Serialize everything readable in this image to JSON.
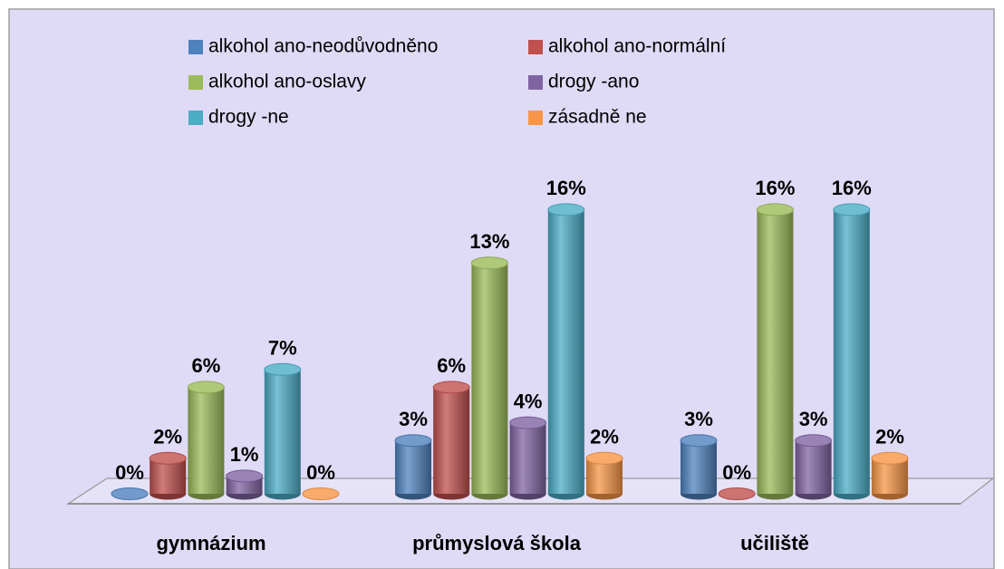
{
  "chart_data": {
    "type": "bar",
    "categories": [
      "gymnázium",
      "průmyslová škola",
      "učiliště"
    ],
    "series": [
      {
        "name": "alkohol ano-neodůvodněno",
        "color": "#4f81bd",
        "values": [
          0,
          3,
          3
        ],
        "value_labels": [
          "0%",
          "3%",
          "3%"
        ]
      },
      {
        "name": "alkohol ano-normální",
        "color": "#c0504d",
        "values": [
          2,
          6,
          0
        ],
        "value_labels": [
          "2%",
          "6%",
          "0%"
        ]
      },
      {
        "name": "alkohol ano-oslavy",
        "color": "#9bbb59",
        "values": [
          6,
          13,
          16
        ],
        "value_labels": [
          "6%",
          "13%",
          "16%"
        ]
      },
      {
        "name": "drogy -ano",
        "color": "#8064a2",
        "values": [
          1,
          4,
          3
        ],
        "value_labels": [
          "1%",
          "4%",
          "3%"
        ]
      },
      {
        "name": "drogy -ne",
        "color": "#4bacc6",
        "values": [
          7,
          16,
          16
        ],
        "value_labels": [
          "7%",
          "16%",
          "16%"
        ]
      },
      {
        "name": "zásadně ne",
        "color": "#f79646",
        "values": [
          0,
          2,
          2
        ],
        "value_labels": [
          "0%",
          "2%",
          "2%"
        ]
      }
    ],
    "legend": "top"
  }
}
